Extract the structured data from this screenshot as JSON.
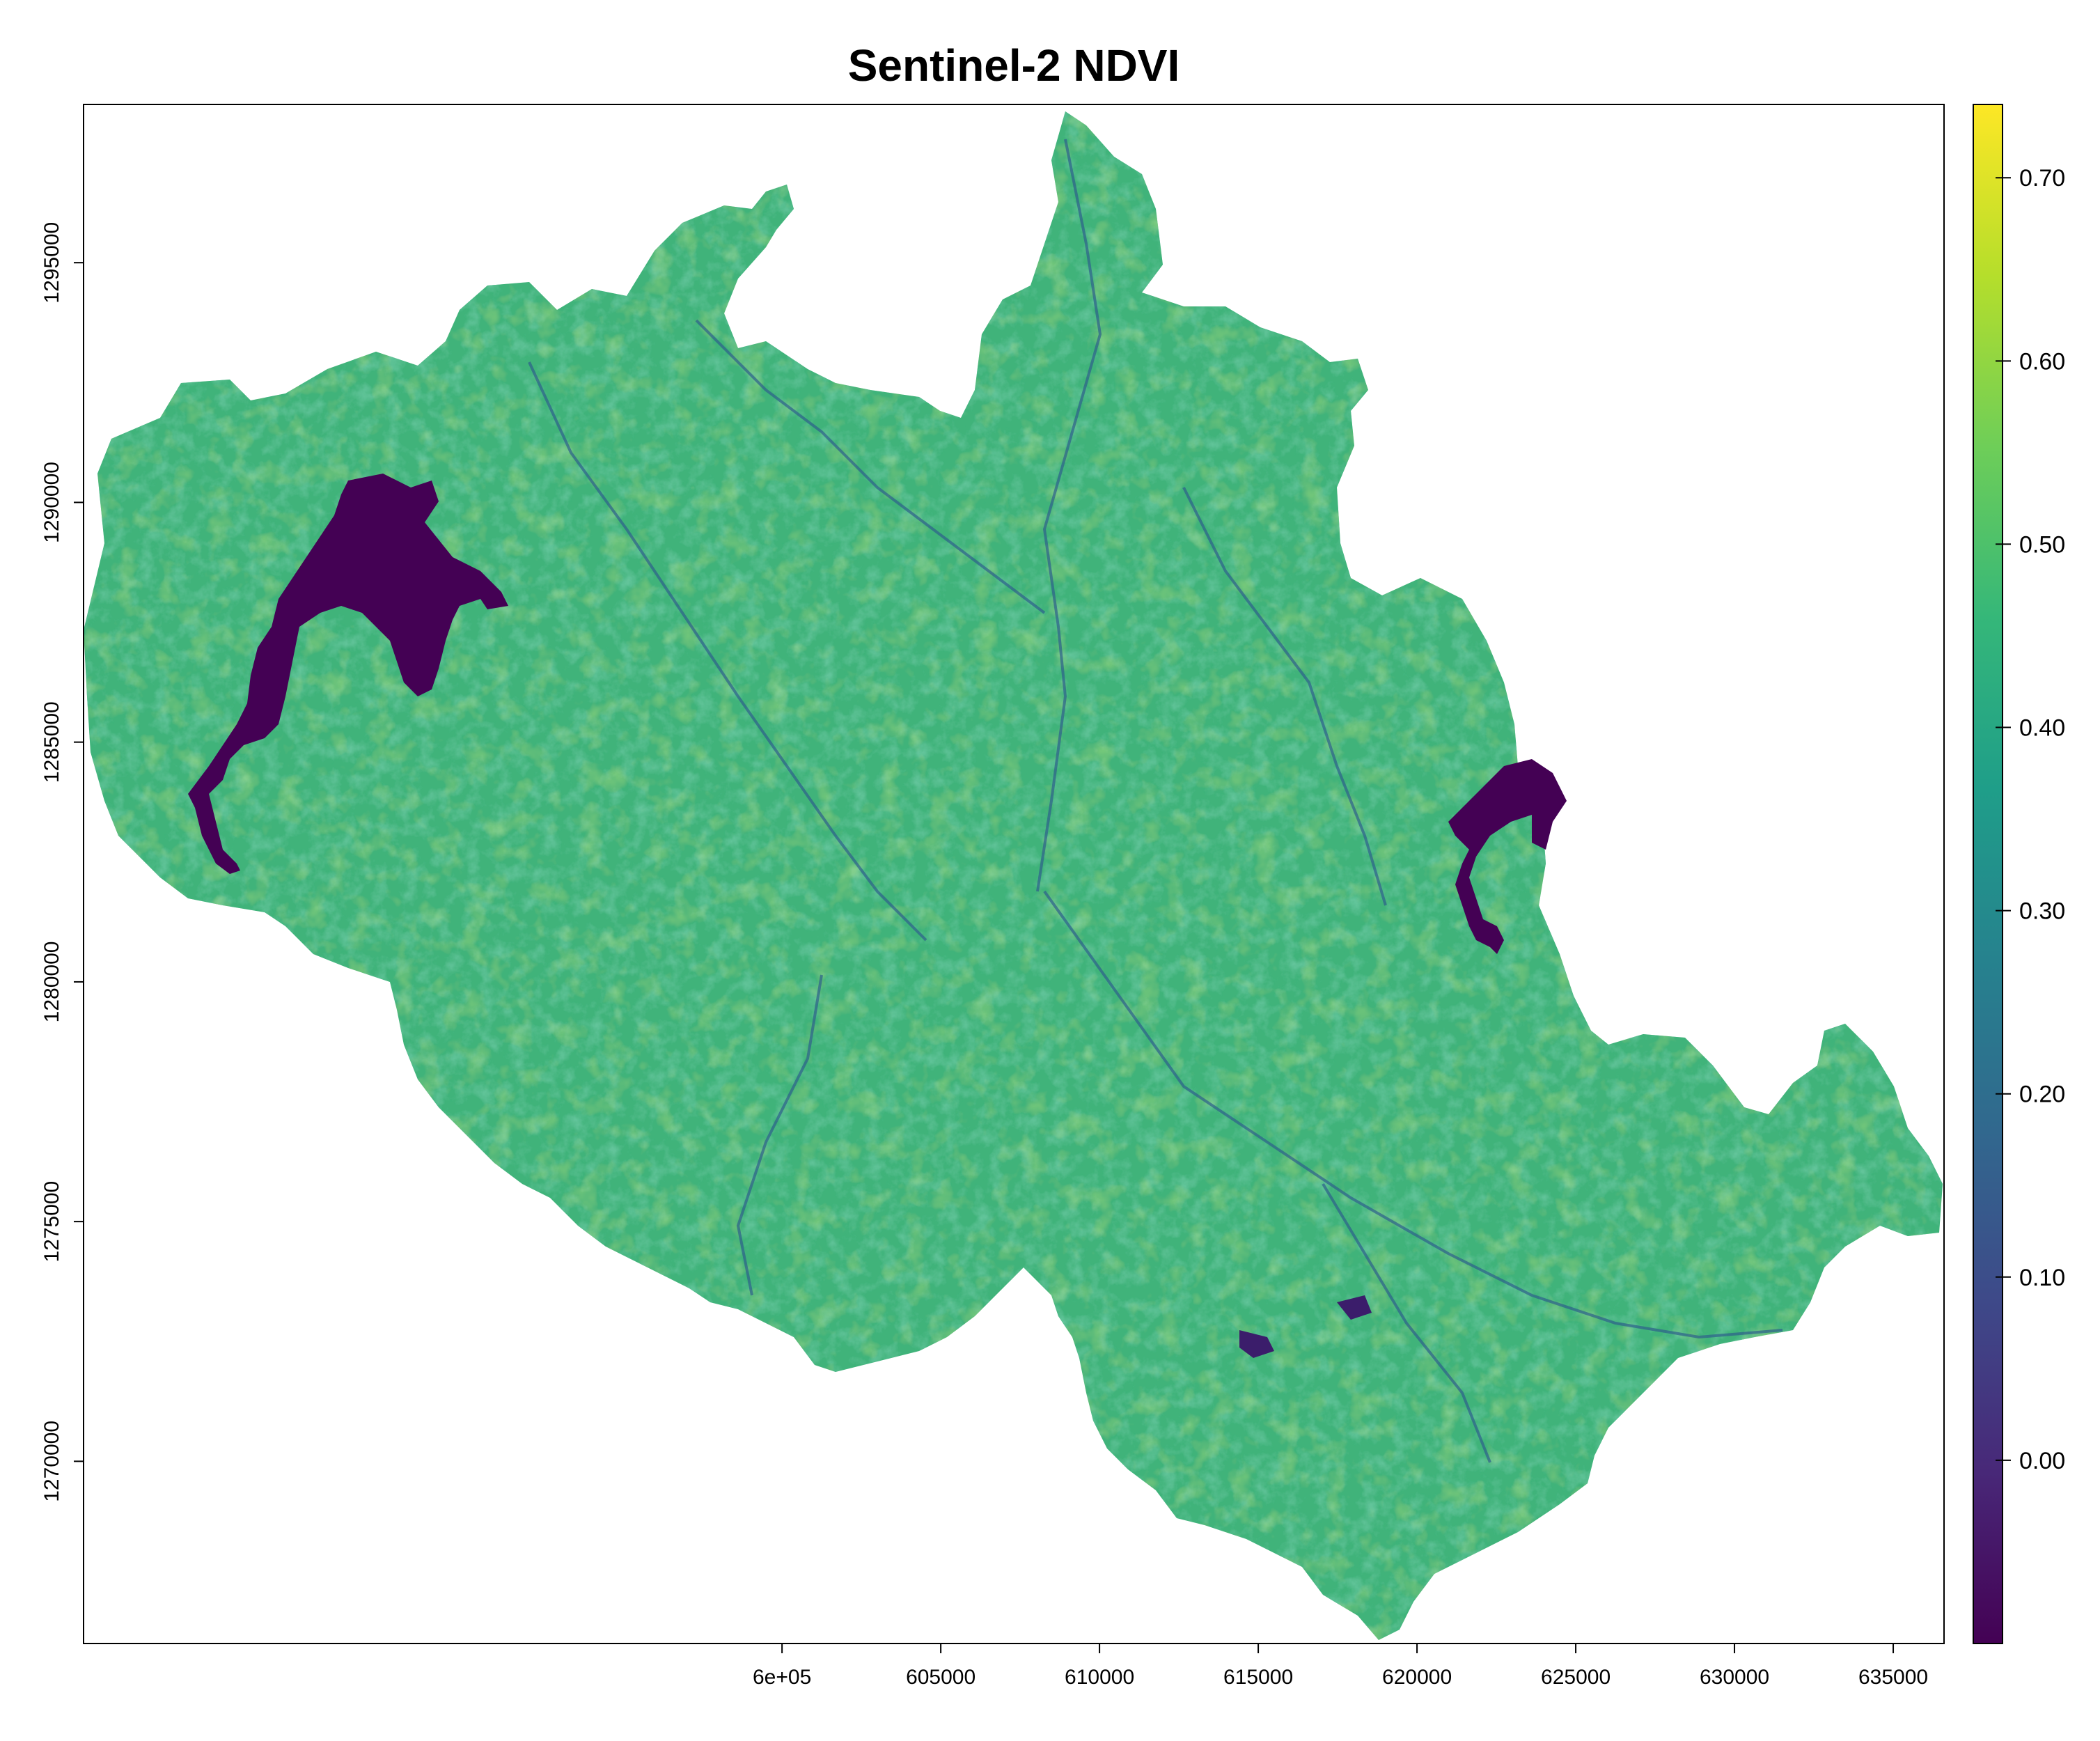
{
  "title": "Sentinel-2 NDVI",
  "map": {
    "x_range": [
      578000,
      636600
    ],
    "y_range": [
      1266200,
      1298300
    ],
    "x_ticks": [
      {
        "value": 600000,
        "label": "6e+05"
      },
      {
        "value": 605000,
        "label": "605000"
      },
      {
        "value": 610000,
        "label": "610000"
      },
      {
        "value": 615000,
        "label": "615000"
      },
      {
        "value": 620000,
        "label": "620000"
      },
      {
        "value": 625000,
        "label": "625000"
      },
      {
        "value": 630000,
        "label": "630000"
      },
      {
        "value": 635000,
        "label": "635000"
      }
    ],
    "y_ticks": [
      {
        "value": 1270000,
        "label": "1270000"
      },
      {
        "value": 1275000,
        "label": "1275000"
      },
      {
        "value": 1280000,
        "label": "1280000"
      },
      {
        "value": 1285000,
        "label": "1285000"
      },
      {
        "value": 1290000,
        "label": "1290000"
      },
      {
        "value": 1295000,
        "label": "1295000"
      }
    ],
    "fill_value": 0.46
  },
  "legend": {
    "range": [
      -0.1,
      0.74
    ],
    "ticks": [
      {
        "value": 0.0,
        "label": "0.00"
      },
      {
        "value": 0.1,
        "label": "0.10"
      },
      {
        "value": 0.2,
        "label": "0.20"
      },
      {
        "value": 0.3,
        "label": "0.30"
      },
      {
        "value": 0.4,
        "label": "0.40"
      },
      {
        "value": 0.5,
        "label": "0.50"
      },
      {
        "value": 0.6,
        "label": "0.60"
      },
      {
        "value": 0.7,
        "label": "0.70"
      }
    ],
    "palette": [
      "#440154",
      "#482878",
      "#3e4989",
      "#31688e",
      "#26828e",
      "#1f9e89",
      "#35b779",
      "#6ece58",
      "#b5de2b",
      "#fde725"
    ]
  },
  "chart_data": {
    "type": "heatmap",
    "title": "Sentinel-2 NDVI",
    "xlabel": "",
    "ylabel": "",
    "xlim": [
      578000,
      636600
    ],
    "ylim": [
      1266200,
      1298300
    ],
    "color_scale": "viridis",
    "value_range": [
      -0.1,
      0.74
    ],
    "legend_ticks": [
      0.0,
      0.1,
      0.2,
      0.3,
      0.4,
      0.5,
      0.6,
      0.7
    ],
    "legend_position": "right",
    "water_bodies_ndvi": -0.08,
    "typical_vegetation_ndvi": [
      0.4,
      0.6
    ]
  }
}
